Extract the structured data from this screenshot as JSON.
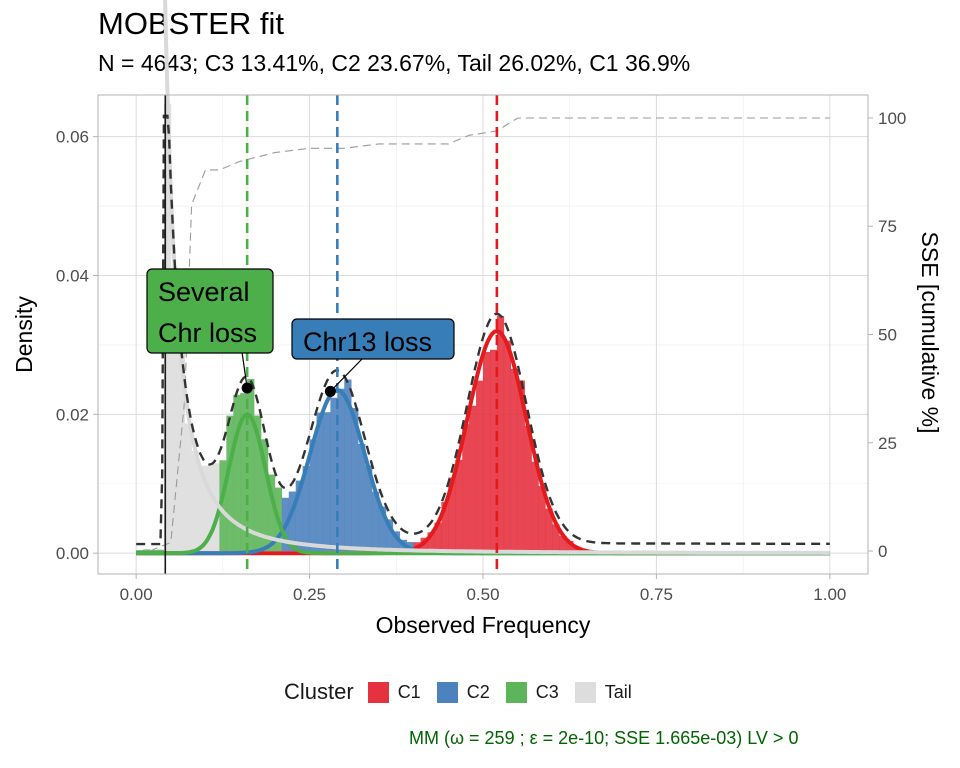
{
  "chart_data": {
    "type": "histogram",
    "title": "MOBSTER fit",
    "subtitle": "N = 4643; C3 13.41%, C2 23.67%, Tail 26.02%, C1 36.9%",
    "xlabel": "Observed Frequency",
    "ylabel": "Density",
    "y2label": "SSE [cumulative %]",
    "xlim": [
      -0.055,
      1.055
    ],
    "ylim": [
      -0.003,
      0.066
    ],
    "y2lim": [
      -5.3,
      105.3
    ],
    "x_ticks": [
      "0.00",
      "0.25",
      "0.50",
      "0.75",
      "1.00"
    ],
    "y_ticks": [
      "0.00",
      "0.02",
      "0.04",
      "0.06"
    ],
    "y2_ticks": [
      "0",
      "25",
      "50",
      "75",
      "100"
    ],
    "grid": true,
    "legend_position": "bottom",
    "legend_title": "Cluster",
    "clusters": [
      {
        "name": "C1",
        "color": "#E41A1C",
        "fill": "#E4323F",
        "mean": 0.52,
        "sd": 0.0425,
        "weight": 0.369,
        "density_peak": 0.032
      },
      {
        "name": "C2",
        "color": "#377EB8",
        "fill": "#4C82BE",
        "mean": 0.29,
        "sd": 0.0395,
        "weight": 0.2367,
        "density_peak": 0.0235
      },
      {
        "name": "C3",
        "color": "#4DAF4A",
        "fill": "#5DB55A",
        "mean": 0.16,
        "sd": 0.0265,
        "weight": 0.1341,
        "density_peak": 0.02
      },
      {
        "name": "Tail",
        "color": "#D9D9D9",
        "fill": "#DDDDDD",
        "shape": "pareto",
        "scale": 0.04,
        "weight": 0.2602
      }
    ],
    "vlines": [
      {
        "x": 0.042,
        "color": "#1a1a1a"
      },
      {
        "x": 0.16,
        "color": "#4DAF4A"
      },
      {
        "x": 0.29,
        "color": "#377EB8"
      },
      {
        "x": 0.52,
        "color": "#E41A1C"
      }
    ],
    "annotations": [
      {
        "text": "Several\nChr loss",
        "x": 0.16,
        "y": 0.0238,
        "fill": "#4DAF4A"
      },
      {
        "text": "Chr13 loss",
        "x": 0.28,
        "y": 0.0233,
        "fill": "#377EB8"
      }
    ],
    "mixture_density": {
      "style": "dashed",
      "color": "#333333",
      "peak_tail": 0.063,
      "baseline": 0.0013
    },
    "sse_cumulative": {
      "style": "dashed",
      "color": "#9a9a9a",
      "x": [
        0.02,
        0.05,
        0.07,
        0.08,
        0.1,
        0.12,
        0.15,
        0.2,
        0.25,
        0.3,
        0.35,
        0.4,
        0.45,
        0.48,
        0.52,
        0.55,
        0.6,
        0.7,
        0.8,
        0.9,
        1.0
      ],
      "y": [
        0,
        2,
        35,
        80,
        88,
        88,
        90,
        92,
        93,
        93,
        94,
        94,
        94,
        96,
        97,
        100,
        100,
        100,
        100,
        100,
        100
      ]
    }
  },
  "legend": {
    "title": "Cluster",
    "items": [
      {
        "label": "C1",
        "color": "#E4323F"
      },
      {
        "label": "C2",
        "color": "#4C82BE"
      },
      {
        "label": "C3",
        "color": "#5DB55A"
      },
      {
        "label": "Tail",
        "color": "#DDDDDD"
      }
    ]
  },
  "caption": "MM (ω = 259 ; ε = 2e-10; SSE 1.665e-03) LV > 0"
}
